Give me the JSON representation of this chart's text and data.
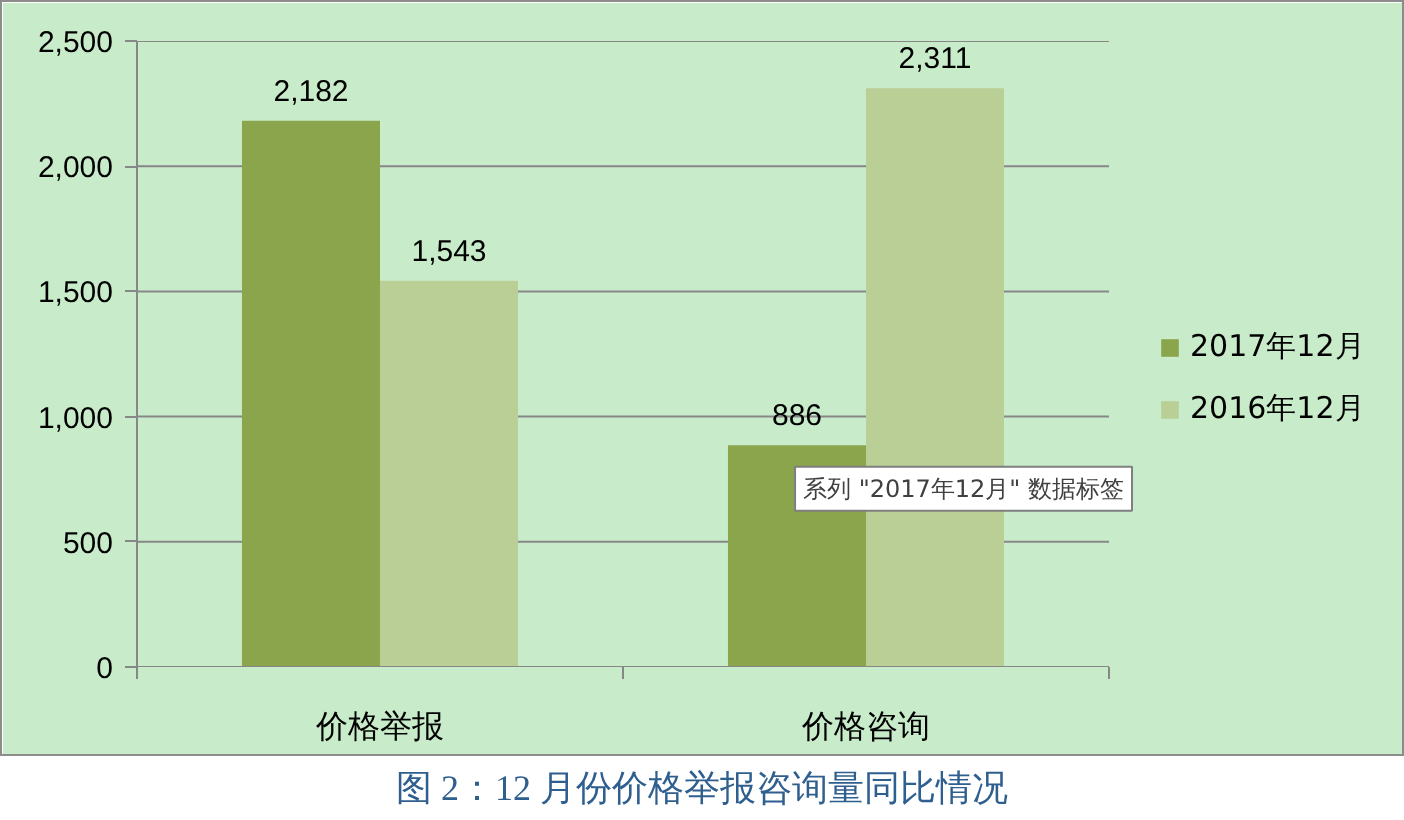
{
  "chart_data": {
    "type": "bar",
    "categories": [
      "价格举报",
      "价格咨询"
    ],
    "series": [
      {
        "name": "2017年12月",
        "color": "#8ba54d",
        "values": [
          2182,
          886
        ],
        "value_labels": [
          "2,182",
          "886"
        ]
      },
      {
        "name": "2016年12月",
        "color": "#b9cf96",
        "values": [
          1543,
          2311
        ],
        "value_labels": [
          "1,543",
          "2,311"
        ]
      }
    ],
    "ylim": [
      0,
      2500
    ],
    "yticks": [
      0,
      500,
      {
        "value": 1000,
        "label": "1,000"
      },
      {
        "value": 1500,
        "label": "1,500"
      },
      {
        "value": 2000,
        "label": "2,000"
      },
      {
        "value": 2500,
        "label": "2,500"
      }
    ],
    "grid": "y",
    "legend": "right",
    "annotations": [
      "系列 \"2017年12月\" 数据标签",
      "图 2：12 月份价格举报咨询量同比情况"
    ]
  }
}
